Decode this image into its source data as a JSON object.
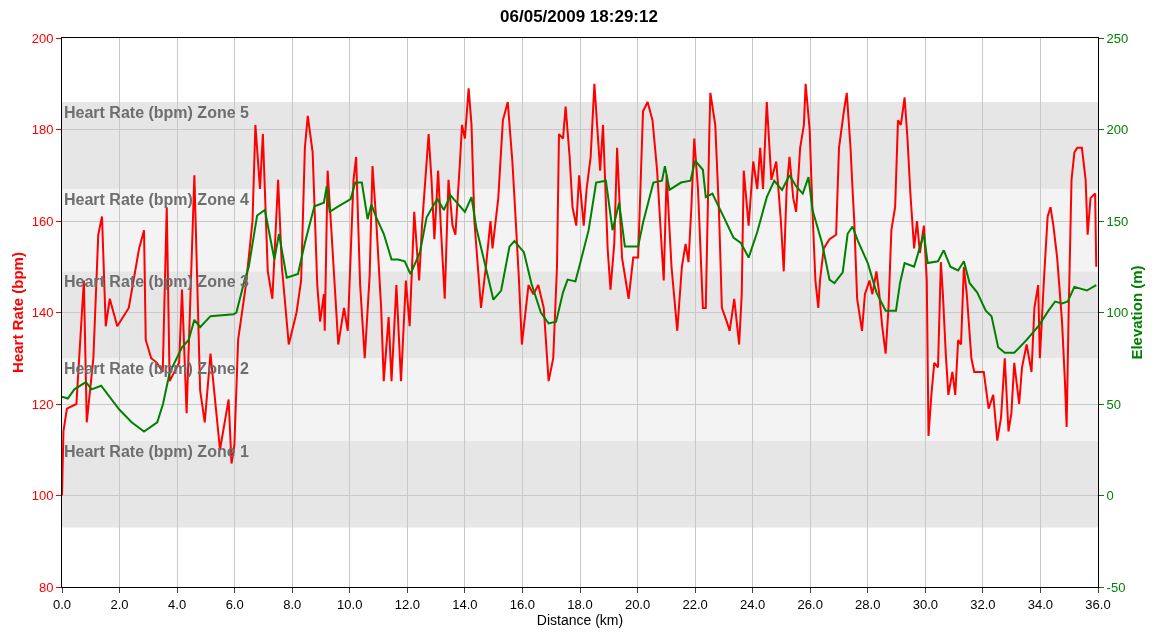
{
  "chart_data": {
    "type": "line",
    "title": "06/05/2009 18:29:12",
    "xlabel": "Distance (km)",
    "ylabel": "Heart Rate (bpm)",
    "y2label": "Elevation (m)",
    "xlim": [
      0,
      36
    ],
    "xticks": [
      {
        "value": 0,
        "label": "0.0"
      },
      {
        "value": 2,
        "label": "2.0"
      },
      {
        "value": 4,
        "label": "4.0"
      },
      {
        "value": 6,
        "label": "6.0"
      },
      {
        "value": 8,
        "label": "8.0"
      },
      {
        "value": 10,
        "label": "10.0"
      },
      {
        "value": 12,
        "label": "12.0"
      },
      {
        "value": 14,
        "label": "14.0"
      },
      {
        "value": 16,
        "label": "16.0"
      },
      {
        "value": 18,
        "label": "18.0"
      },
      {
        "value": 20,
        "label": "20.0"
      },
      {
        "value": 22,
        "label": "22.0"
      },
      {
        "value": 24,
        "label": "24.0"
      },
      {
        "value": 26,
        "label": "26.0"
      },
      {
        "value": 28,
        "label": "28.0"
      },
      {
        "value": 30,
        "label": "30.0"
      },
      {
        "value": 32,
        "label": "32.0"
      },
      {
        "value": 34,
        "label": "34.0"
      },
      {
        "value": 36,
        "label": "36.0"
      }
    ],
    "ylim": [
      80,
      200
    ],
    "yticks": [
      80,
      100,
      120,
      140,
      160,
      180,
      200
    ],
    "y2lim": [
      -50,
      250
    ],
    "y2ticks": [
      -50,
      0,
      50,
      100,
      150,
      200,
      250
    ],
    "grid": true,
    "marker": "none",
    "line_style": "solid",
    "bands": [
      {
        "axis": "y",
        "from": 93,
        "to": 112,
        "label": "Heart Rate (bpm) Zone 1",
        "color": "#e6e6e6"
      },
      {
        "axis": "y",
        "from": 112,
        "to": 130,
        "label": "Heart Rate (bpm) Zone 2",
        "color": "#f3f3f3"
      },
      {
        "axis": "y",
        "from": 130,
        "to": 149,
        "label": "Heart Rate (bpm) Zone 3",
        "color": "#e6e6e6"
      },
      {
        "axis": "y",
        "from": 149,
        "to": 167,
        "label": "Heart Rate (bpm) Zone 4",
        "color": "#f3f3f3"
      },
      {
        "axis": "y",
        "from": 167,
        "to": 186,
        "label": "Heart Rate (bpm) Zone 5",
        "color": "#e6e6e6"
      }
    ],
    "series": [
      {
        "color": "#ff0000",
        "axis": "y",
        "x": [
          0.0,
          0.05,
          0.17,
          0.5,
          0.76,
          0.86,
          1.09,
          1.26,
          1.39,
          1.52,
          1.66,
          1.92,
          2.32,
          2.68,
          2.85,
          2.91,
          3.1,
          3.3,
          3.5,
          3.64,
          3.74,
          4.07,
          4.17,
          4.33,
          4.6,
          4.8,
          4.96,
          5.16,
          5.49,
          5.79,
          5.89,
          5.99,
          6.12,
          6.39,
          6.62,
          6.72,
          6.88,
          6.98,
          7.15,
          7.31,
          7.51,
          7.64,
          7.88,
          8.15,
          8.31,
          8.44,
          8.54,
          8.71,
          8.87,
          8.97,
          9.1,
          9.13,
          9.23,
          9.36,
          9.6,
          9.8,
          9.93,
          10.13,
          10.22,
          10.36,
          10.52,
          10.69,
          10.79,
          10.92,
          11.09,
          11.18,
          11.35,
          11.45,
          11.62,
          11.78,
          11.95,
          12.08,
          12.24,
          12.41,
          12.51,
          12.74,
          12.84,
          12.94,
          13.07,
          13.17,
          13.3,
          13.43,
          13.57,
          13.67,
          13.83,
          13.9,
          14.0,
          14.13,
          14.23,
          14.33,
          14.56,
          14.73,
          14.89,
          14.96,
          15.16,
          15.32,
          15.49,
          15.65,
          15.75,
          15.88,
          15.98,
          16.21,
          16.38,
          16.55,
          16.74,
          16.91,
          17.07,
          17.2,
          17.27,
          17.41,
          17.5,
          17.64,
          17.74,
          17.87,
          17.97,
          18.13,
          18.23,
          18.37,
          18.5,
          18.7,
          18.8,
          18.96,
          19.06,
          19.19,
          19.29,
          19.46,
          19.69,
          19.85,
          20.02,
          20.19,
          20.35,
          20.52,
          20.68,
          20.85,
          20.91,
          21.01,
          21.18,
          21.38,
          21.54,
          21.67,
          21.77,
          21.87,
          21.97,
          22.1,
          22.27,
          22.37,
          22.5,
          22.53,
          22.7,
          22.83,
          22.93,
          23.1,
          23.2,
          23.36,
          23.53,
          23.62,
          23.69,
          23.86,
          24.02,
          24.16,
          24.26,
          24.36,
          24.49,
          24.65,
          24.82,
          24.98,
          25.08,
          25.18,
          25.28,
          25.41,
          25.51,
          25.65,
          25.78,
          25.84,
          25.98,
          26.08,
          26.18,
          26.28,
          26.34,
          26.47,
          26.67,
          26.9,
          27.0,
          27.17,
          27.27,
          27.4,
          27.47,
          27.53,
          27.63,
          27.8,
          27.9,
          28.06,
          28.16,
          28.3,
          28.4,
          28.5,
          28.62,
          28.72,
          28.82,
          28.95,
          29.05,
          29.15,
          29.28,
          29.38,
          29.48,
          29.61,
          29.71,
          29.81,
          29.95,
          30.05,
          30.11,
          30.21,
          30.31,
          30.44,
          30.54,
          30.61,
          30.71,
          30.8,
          30.94,
          31.04,
          31.14,
          31.24,
          31.34,
          31.44,
          31.6,
          31.7,
          31.87,
          32.03,
          32.2,
          32.36,
          32.5,
          32.63,
          32.76,
          32.89,
          32.99,
          33.09,
          33.26,
          33.36,
          33.52,
          33.69,
          33.79,
          33.92,
          33.98,
          34.12,
          34.25,
          34.35,
          34.45,
          34.58,
          34.75,
          34.85,
          34.91,
          34.98,
          35.08,
          35.18,
          35.28,
          35.44,
          35.57,
          35.64,
          35.74,
          35.9,
          35.94
        ],
        "values": [
          100,
          114,
          119,
          120,
          147,
          116,
          130,
          157,
          161,
          137,
          143,
          137,
          141,
          154,
          158,
          134,
          130,
          129,
          127,
          163,
          125,
          129,
          145,
          118,
          170,
          123,
          116,
          131,
          110,
          121,
          107,
          111,
          134,
          146,
          160,
          181,
          167,
          179,
          149,
          143,
          169,
          150,
          133,
          140,
          147,
          176,
          183,
          175,
          146,
          138,
          144,
          136,
          171,
          158,
          133,
          141,
          136,
          169,
          174,
          146,
          130,
          148,
          172,
          160,
          141,
          125,
          139,
          125,
          146,
          125,
          147,
          137,
          162,
          147,
          159,
          179,
          169,
          156,
          171,
          158,
          143,
          169,
          159,
          157,
          173,
          181,
          178,
          189,
          181,
          160,
          141,
          150,
          160,
          154,
          165,
          182,
          186,
          173,
          162,
          147,
          133,
          146,
          144,
          146,
          141,
          125,
          130,
          150,
          179,
          178,
          185,
          174,
          163,
          159,
          170,
          159,
          167,
          174,
          190,
          171,
          181,
          154,
          145,
          155,
          176,
          152,
          143,
          152,
          152,
          184,
          186,
          182,
          171,
          153,
          147,
          170,
          150,
          136,
          150,
          155,
          151,
          163,
          178,
          167,
          141,
          141,
          181,
          188,
          181,
          162,
          141,
          138,
          136,
          143,
          133,
          144,
          171,
          159,
          173,
          167,
          176,
          167,
          186,
          169,
          173,
          160,
          149,
          167,
          174,
          165,
          162,
          176,
          181,
          190,
          180,
          162,
          147,
          141,
          147,
          154,
          156,
          157,
          176,
          184,
          188,
          176,
          167,
          160,
          143,
          136,
          144,
          147,
          144,
          149,
          144,
          137,
          131,
          141,
          158,
          163,
          182,
          181,
          187,
          178,
          166,
          154,
          160,
          153,
          159,
          147,
          113,
          122,
          129,
          128,
          151,
          144,
          131,
          122,
          127,
          122,
          134,
          133,
          150,
          144,
          130,
          127,
          127,
          127,
          119,
          122,
          112,
          117,
          130,
          114,
          118,
          129,
          120,
          128,
          133,
          127,
          141,
          146,
          130,
          147,
          161,
          163,
          159,
          152,
          138,
          125,
          115,
          140,
          169,
          175,
          176,
          176,
          169,
          157,
          165,
          166,
          150
        ]
      },
      {
        "color": "#008000",
        "axis": "y2",
        "x": [
          0.0,
          0.2,
          0.43,
          0.83,
          1.03,
          1.36,
          1.99,
          2.42,
          2.85,
          3.31,
          3.51,
          3.74,
          4.17,
          4.4,
          4.6,
          4.8,
          5.16,
          5.96,
          6.06,
          6.35,
          6.49,
          6.78,
          7.05,
          7.38,
          7.54,
          7.81,
          8.2,
          8.44,
          8.77,
          9.1,
          9.2,
          9.3,
          9.6,
          10.03,
          10.19,
          10.42,
          10.62,
          10.75,
          10.92,
          11.18,
          11.45,
          11.68,
          11.91,
          12.11,
          12.44,
          12.67,
          13.04,
          13.27,
          13.5,
          14.0,
          14.23,
          14.4,
          14.66,
          14.99,
          15.26,
          15.55,
          15.72,
          16.05,
          16.31,
          16.64,
          16.91,
          17.17,
          17.41,
          17.57,
          17.84,
          18.04,
          18.3,
          18.56,
          18.9,
          19.13,
          19.36,
          19.56,
          20.02,
          20.19,
          20.55,
          20.85,
          20.95,
          21.11,
          21.51,
          21.84,
          22.0,
          22.27,
          22.37,
          22.6,
          23.03,
          23.33,
          23.59,
          23.86,
          24.16,
          24.49,
          24.75,
          25.02,
          25.28,
          25.51,
          25.74,
          25.94,
          26.08,
          26.41,
          26.67,
          26.84,
          27.13,
          27.3,
          27.47,
          27.66,
          28.0,
          28.3,
          28.62,
          28.98,
          29.12,
          29.28,
          29.61,
          29.78,
          29.95,
          30.08,
          30.44,
          30.64,
          30.87,
          31.14,
          31.34,
          31.54,
          31.8,
          32.1,
          32.3,
          32.53,
          32.76,
          33.09,
          33.52,
          33.95,
          34.28,
          34.51,
          34.75,
          34.95,
          35.18,
          35.61,
          35.94
        ],
        "values": [
          54,
          53,
          58,
          62,
          58,
          60,
          47,
          40,
          35,
          40,
          50,
          67,
          81,
          85,
          96,
          92,
          98,
          99,
          100,
          118,
          125,
          153,
          156,
          129,
          143,
          119,
          121,
          138,
          158,
          160,
          169,
          155,
          158,
          162,
          171,
          171,
          151,
          159,
          152,
          143,
          129,
          129,
          128,
          121,
          133,
          152,
          162,
          156,
          164,
          155,
          163,
          146,
          129,
          107,
          112,
          136,
          139,
          133,
          116,
          100,
          94,
          95,
          111,
          118,
          117,
          129,
          145,
          171,
          172,
          145,
          160,
          136,
          136,
          149,
          171,
          172,
          180,
          167,
          171,
          172,
          183,
          178,
          163,
          165,
          151,
          141,
          138,
          130,
          144,
          163,
          172,
          167,
          175,
          169,
          165,
          174,
          156,
          138,
          118,
          116,
          122,
          143,
          147,
          139,
          127,
          111,
          101,
          101,
          116,
          127,
          125,
          134,
          143,
          127,
          128,
          134,
          125,
          123,
          128,
          116,
          111,
          101,
          98,
          81,
          78,
          78,
          85,
          93,
          101,
          106,
          105,
          106,
          114,
          112,
          115
        ]
      }
    ]
  }
}
